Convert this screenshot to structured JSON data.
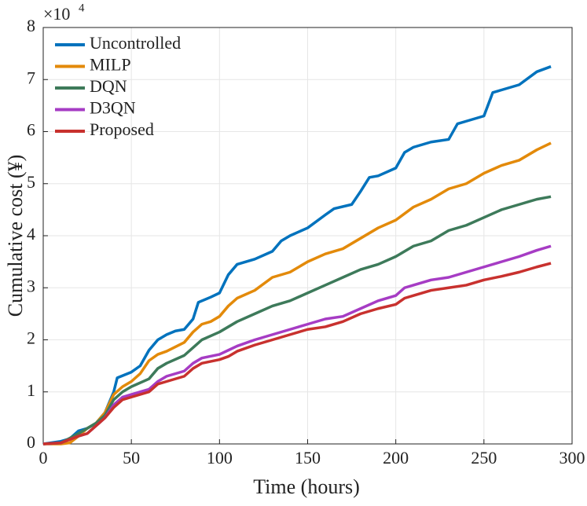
{
  "chart_data": {
    "type": "line",
    "xlabel": "Time (hours)",
    "ylabel": "Cumulative cost (¥)",
    "y_multiplier": "×10",
    "y_multiplier_exponent": "4",
    "xlim": [
      0,
      300
    ],
    "xticks": [
      0,
      50,
      100,
      150,
      200,
      250,
      300
    ],
    "ylim": [
      0,
      8
    ],
    "yticks": [
      0,
      1,
      2,
      3,
      4,
      5,
      6,
      7,
      8
    ],
    "grid": true,
    "legend": "upper left",
    "series": [
      {
        "name": "Uncontrolled",
        "color": "#0072bd",
        "x": [
          0,
          10,
          15,
          20,
          25,
          30,
          35,
          40,
          42,
          50,
          55,
          60,
          65,
          70,
          75,
          80,
          85,
          88,
          95,
          100,
          105,
          110,
          120,
          130,
          135,
          140,
          150,
          160,
          165,
          175,
          180,
          185,
          190,
          200,
          205,
          210,
          220,
          230,
          235,
          240,
          250,
          255,
          260,
          270,
          280,
          288
        ],
        "values": [
          0,
          0.05,
          0.1,
          0.25,
          0.3,
          0.4,
          0.6,
          1.0,
          1.27,
          1.38,
          1.5,
          1.8,
          2.0,
          2.1,
          2.17,
          2.2,
          2.4,
          2.72,
          2.82,
          2.9,
          3.25,
          3.45,
          3.55,
          3.7,
          3.9,
          4.0,
          4.15,
          4.4,
          4.52,
          4.6,
          4.85,
          5.12,
          5.15,
          5.3,
          5.6,
          5.7,
          5.8,
          5.85,
          6.15,
          6.2,
          6.3,
          6.75,
          6.8,
          6.9,
          7.15,
          7.25
        ]
      },
      {
        "name": "MILP",
        "color": "#e38a0a",
        "x": [
          0,
          10,
          15,
          20,
          25,
          30,
          35,
          40,
          45,
          50,
          55,
          60,
          65,
          70,
          80,
          85,
          90,
          95,
          100,
          105,
          110,
          120,
          130,
          140,
          150,
          160,
          170,
          180,
          190,
          200,
          210,
          220,
          230,
          240,
          250,
          260,
          270,
          280,
          288
        ],
        "values": [
          0,
          0,
          0.02,
          0.15,
          0.3,
          0.4,
          0.6,
          0.95,
          1.1,
          1.2,
          1.35,
          1.6,
          1.72,
          1.78,
          1.95,
          2.15,
          2.3,
          2.35,
          2.45,
          2.65,
          2.8,
          2.95,
          3.2,
          3.3,
          3.5,
          3.65,
          3.75,
          3.95,
          4.15,
          4.3,
          4.55,
          4.7,
          4.9,
          5.0,
          5.2,
          5.35,
          5.45,
          5.65,
          5.78
        ]
      },
      {
        "name": "DQN",
        "color": "#3d7a5a",
        "x": [
          0,
          10,
          20,
          25,
          30,
          35,
          40,
          45,
          50,
          60,
          65,
          70,
          80,
          85,
          90,
          100,
          110,
          120,
          130,
          140,
          150,
          160,
          170,
          180,
          190,
          200,
          210,
          220,
          230,
          240,
          250,
          260,
          270,
          280,
          288
        ],
        "values": [
          0,
          0.02,
          0.2,
          0.3,
          0.4,
          0.55,
          0.85,
          1.0,
          1.1,
          1.25,
          1.45,
          1.55,
          1.7,
          1.85,
          2.0,
          2.15,
          2.35,
          2.5,
          2.65,
          2.75,
          2.9,
          3.05,
          3.2,
          3.35,
          3.45,
          3.6,
          3.8,
          3.9,
          4.1,
          4.2,
          4.35,
          4.5,
          4.6,
          4.7,
          4.75
        ]
      },
      {
        "name": "D3QN",
        "color": "#a63cc4",
        "x": [
          0,
          10,
          20,
          25,
          30,
          35,
          40,
          45,
          50,
          60,
          65,
          70,
          80,
          85,
          90,
          100,
          105,
          110,
          120,
          130,
          140,
          150,
          160,
          170,
          180,
          190,
          200,
          205,
          210,
          220,
          230,
          240,
          250,
          260,
          270,
          280,
          288
        ],
        "values": [
          0,
          0.02,
          0.15,
          0.2,
          0.35,
          0.5,
          0.75,
          0.9,
          0.95,
          1.05,
          1.2,
          1.3,
          1.4,
          1.55,
          1.65,
          1.72,
          1.8,
          1.88,
          2.0,
          2.1,
          2.2,
          2.3,
          2.4,
          2.45,
          2.6,
          2.75,
          2.85,
          3.0,
          3.05,
          3.15,
          3.2,
          3.3,
          3.4,
          3.5,
          3.6,
          3.72,
          3.8
        ]
      },
      {
        "name": "Proposed",
        "color": "#c8312e",
        "x": [
          0,
          10,
          20,
          25,
          30,
          35,
          40,
          45,
          50,
          60,
          65,
          70,
          80,
          85,
          90,
          100,
          105,
          110,
          120,
          130,
          140,
          150,
          160,
          170,
          180,
          190,
          200,
          205,
          210,
          220,
          230,
          240,
          250,
          260,
          270,
          280,
          288
        ],
        "values": [
          0,
          0.02,
          0.15,
          0.2,
          0.35,
          0.5,
          0.7,
          0.85,
          0.9,
          1.0,
          1.15,
          1.2,
          1.3,
          1.45,
          1.55,
          1.62,
          1.68,
          1.78,
          1.9,
          2.0,
          2.1,
          2.2,
          2.25,
          2.35,
          2.5,
          2.6,
          2.68,
          2.8,
          2.85,
          2.95,
          3.0,
          3.05,
          3.15,
          3.22,
          3.3,
          3.4,
          3.47
        ]
      }
    ]
  }
}
